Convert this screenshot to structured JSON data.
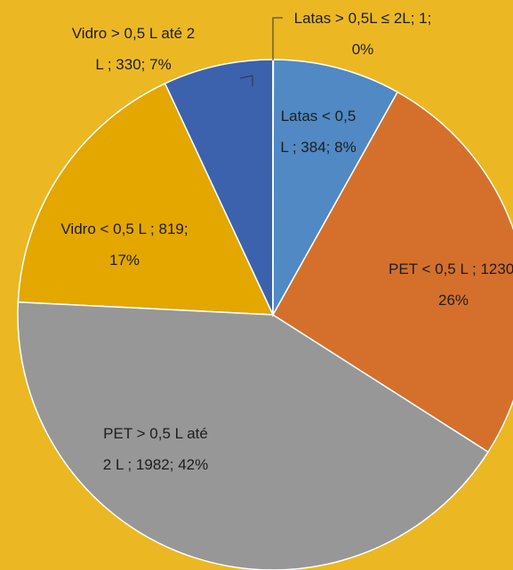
{
  "chart_data": {
    "type": "pie",
    "categories": [
      "Latas > 0,5L ≤ 2L",
      "Latas < 0,5 L",
      "PET < 0,5 L",
      "PET > 0,5 L até 2 L",
      "Vidro < 0,5 L",
      "Vidro > 0,5 L até 2 L"
    ],
    "values": [
      1,
      384,
      1230,
      1982,
      819,
      330
    ],
    "value_labels": [
      "Latas > 0,5L ≤ 2L; 1; 0%",
      "Latas < 0,5 L ; 384; 8%",
      "PET < 0,5 L ; 1230; 26%",
      "PET > 0,5 L até 2 L ; 1982; 42%",
      "Vidro < 0,5 L ; 819; 17%",
      "Vidro > 0,5 L até 2 L ; 330; 7%"
    ],
    "colors": [
      "#e07b30",
      "#5089c4",
      "#d4702c",
      "#979797",
      "#e3a700",
      "#3c62ad"
    ],
    "background": "#ebb824"
  }
}
